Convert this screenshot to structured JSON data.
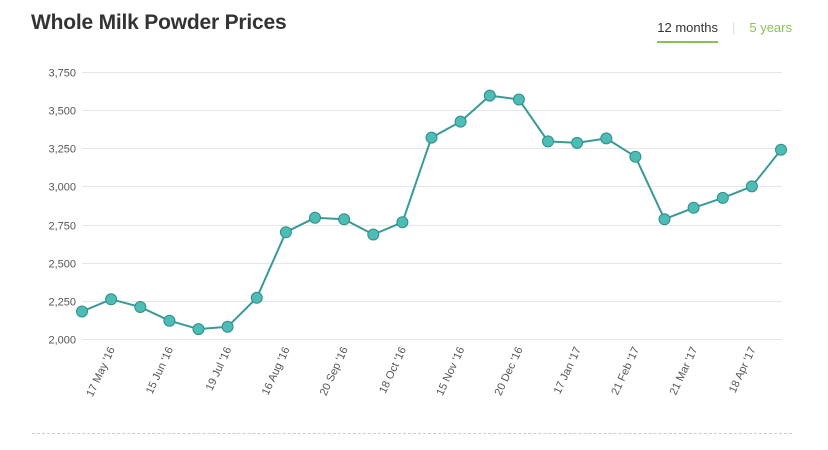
{
  "header": {
    "title": "Whole Milk Powder Prices",
    "tabs": [
      {
        "label": "12 months",
        "active": true
      },
      {
        "label": "5 years",
        "active": false
      }
    ],
    "separator": "|"
  },
  "colors": {
    "line": "#3a9999",
    "marker_fill": "#4dbcb4",
    "marker_stroke": "#2e8f8a",
    "grid": "#e6e6e6",
    "tick_text": "#555555",
    "tab_accent": "#8cc152"
  },
  "chart_data": {
    "type": "line",
    "title": "Whole Milk Powder Prices",
    "xlabel": "",
    "ylabel": "",
    "ylim": [
      2000,
      3750
    ],
    "yticks": [
      2000,
      2250,
      2500,
      2750,
      3000,
      3250,
      3500,
      3750
    ],
    "ytick_labels": [
      "2,000",
      "2,250",
      "2,500",
      "2,750",
      "3,000",
      "3,250",
      "3,500",
      "3,750"
    ],
    "grid": true,
    "legend": "none",
    "x_tick_labels": [
      {
        "index": 1,
        "label": "17 May '16"
      },
      {
        "index": 3,
        "label": "15 Jun '16"
      },
      {
        "index": 5,
        "label": "19 Jul '16"
      },
      {
        "index": 7,
        "label": "16 Aug '16"
      },
      {
        "index": 9,
        "label": "20 Sep '16"
      },
      {
        "index": 11,
        "label": "18 Oct '16"
      },
      {
        "index": 13,
        "label": "15 Nov '16"
      },
      {
        "index": 15,
        "label": "20 Dec '16"
      },
      {
        "index": 17,
        "label": "17 Jan '17"
      },
      {
        "index": 19,
        "label": "21 Feb '17"
      },
      {
        "index": 21,
        "label": "21 Mar '17"
      },
      {
        "index": 23,
        "label": "18 Apr '17"
      }
    ],
    "series": [
      {
        "values": [
          2180,
          2260,
          2210,
          2120,
          2065,
          2080,
          2270,
          2700,
          2795,
          2785,
          2685,
          2765,
          3320,
          3425,
          3595,
          3570,
          3295,
          3285,
          3315,
          3195,
          2785,
          2860,
          2925,
          3000,
          3240
        ]
      }
    ]
  }
}
